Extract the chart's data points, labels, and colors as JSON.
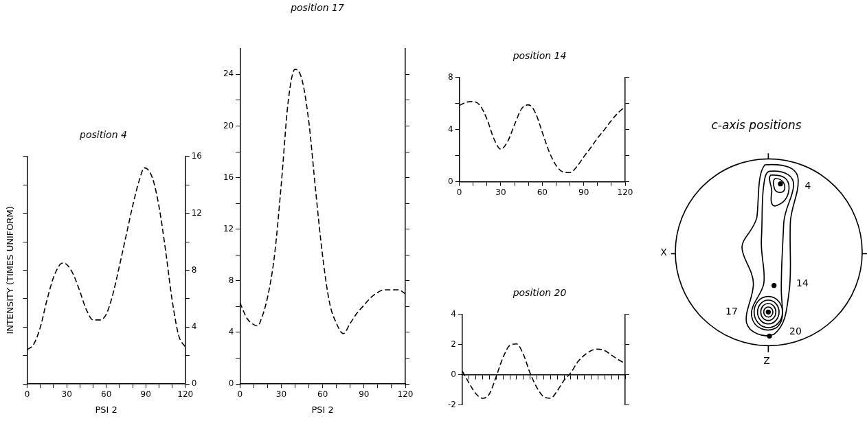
{
  "chart_data": [
    {
      "type": "line",
      "title": "position 4",
      "xlabel": "PSI 2",
      "ylabel": "INTENSITY (TIMES UNIFORM)",
      "line_style": "dashed",
      "grid": false,
      "legend": false,
      "x": [
        0,
        5,
        10,
        15,
        20,
        25,
        27,
        30,
        35,
        40,
        45,
        50,
        55,
        60,
        65,
        70,
        75,
        80,
        85,
        89,
        95,
        100,
        105,
        110,
        115,
        120
      ],
      "series": [
        {
          "color": "#000000",
          "axis": "y2",
          "values": [
            2.4,
            2.8,
            4.0,
            5.9,
            7.5,
            8.4,
            8.5,
            8.4,
            7.7,
            6.5,
            5.2,
            4.5,
            4.5,
            4.9,
            6.3,
            8.3,
            10.4,
            12.5,
            14.3,
            15.2,
            14.5,
            12.5,
            9.4,
            5.9,
            3.4,
            2.6
          ]
        }
      ],
      "xlim": [
        0,
        120
      ],
      "xticks": [
        0,
        {
          "value": 10,
          "label": null
        },
        {
          "value": 20,
          "label": null
        },
        30,
        {
          "value": 40,
          "label": null
        },
        {
          "value": 50,
          "label": null
        },
        60,
        {
          "value": 70,
          "label": null
        },
        {
          "value": 80,
          "label": null
        },
        90,
        {
          "value": 100,
          "label": null
        },
        {
          "value": 110,
          "label": null
        },
        120
      ],
      "y2lim": [
        0,
        16
      ],
      "y2ticks": [
        0,
        {
          "value": 2,
          "label": null
        },
        4,
        {
          "value": 6,
          "label": null
        },
        8,
        {
          "value": 10,
          "label": null
        },
        12,
        {
          "value": 14,
          "label": null
        },
        16
      ]
    },
    {
      "type": "line",
      "title": "position 17",
      "xlabel": "PSI 2",
      "line_style": "dashed",
      "grid": false,
      "legend": false,
      "x": [
        0,
        5,
        10,
        13,
        15,
        20,
        25,
        30,
        35,
        40,
        45,
        50,
        55,
        60,
        65,
        70,
        75,
        80,
        85,
        90,
        95,
        100,
        105,
        110,
        115,
        120
      ],
      "series": [
        {
          "color": "#000000",
          "values": [
            6.3,
            5.1,
            4.6,
            4.5,
            4.9,
            6.7,
            9.9,
            15.5,
            21.9,
            24.4,
            23.6,
            20.3,
            14.9,
            9.9,
            6.3,
            4.7,
            3.9,
            4.7,
            5.5,
            6.1,
            6.7,
            7.1,
            7.3,
            7.3,
            7.3,
            7.0
          ]
        }
      ],
      "xlim": [
        0,
        120
      ],
      "xticks": [
        0,
        {
          "value": 10,
          "label": null
        },
        {
          "value": 20,
          "label": null
        },
        30,
        {
          "value": 40,
          "label": null
        },
        {
          "value": 50,
          "label": null
        },
        60,
        {
          "value": 70,
          "label": null
        },
        {
          "value": 80,
          "label": null
        },
        90,
        {
          "value": 100,
          "label": null
        },
        {
          "value": 110,
          "label": null
        },
        120
      ],
      "ylim": [
        0,
        26
      ],
      "yticks": [
        0,
        {
          "value": 2,
          "label": null
        },
        4,
        {
          "value": 6,
          "label": null
        },
        8,
        {
          "value": 10,
          "label": null
        },
        12,
        {
          "value": 14,
          "label": null
        },
        16,
        {
          "value": 18,
          "label": null
        },
        20,
        {
          "value": 22,
          "label": null
        },
        24
      ]
    },
    {
      "type": "line",
      "title": "position 14",
      "line_style": "dashed",
      "grid": false,
      "legend": false,
      "x": [
        0,
        5,
        10,
        15,
        20,
        25,
        30,
        35,
        40,
        45,
        50,
        55,
        60,
        65,
        70,
        75,
        80,
        85,
        90,
        95,
        100,
        105,
        110,
        115,
        120
      ],
      "series": [
        {
          "color": "#000000",
          "values": [
            5.85,
            6.1,
            6.15,
            5.85,
            4.8,
            3.3,
            2.5,
            3.1,
            4.4,
            5.6,
            5.9,
            5.3,
            3.8,
            2.3,
            1.25,
            0.75,
            0.7,
            1.15,
            1.9,
            2.6,
            3.35,
            4.0,
            4.7,
            5.3,
            5.75
          ]
        }
      ],
      "xlim": [
        0,
        120
      ],
      "xticks": [
        0,
        {
          "value": 10,
          "label": null
        },
        {
          "value": 20,
          "label": null
        },
        30,
        {
          "value": 40,
          "label": null
        },
        {
          "value": 50,
          "label": null
        },
        60,
        {
          "value": 70,
          "label": null
        },
        {
          "value": 80,
          "label": null
        },
        90,
        {
          "value": 100,
          "label": null
        },
        {
          "value": 110,
          "label": null
        },
        120
      ],
      "ylim": [
        0,
        8
      ],
      "yticks": [
        0,
        {
          "value": 2,
          "label": null
        },
        4,
        {
          "value": 6,
          "label": null
        },
        8
      ]
    },
    {
      "type": "line",
      "title": "position 20",
      "line_style": "dashed",
      "legend": false,
      "categories": [
        null,
        null,
        null,
        null,
        null,
        null,
        null,
        null,
        null,
        null,
        null,
        null,
        null,
        null,
        null,
        null,
        null,
        null,
        null,
        null,
        null,
        null,
        null,
        null,
        null
      ],
      "series": [
        {
          "color": "#000000",
          "values": [
            0.25,
            -0.55,
            -1.25,
            -1.55,
            -1.25,
            -0.1,
            1.15,
            1.95,
            2.05,
            1.35,
            0.1,
            -0.85,
            -1.45,
            -1.55,
            -1.05,
            -0.35,
            0.15,
            0.85,
            1.3,
            1.6,
            1.7,
            1.6,
            1.3,
            1.0,
            0.75
          ]
        }
      ],
      "ylim": [
        -2,
        4
      ],
      "yticks": [
        -2,
        0,
        2,
        4
      ]
    },
    {
      "type": "other",
      "title": "c-axis positions",
      "annotations": [
        "X",
        "Z",
        "4",
        "14",
        "17",
        "20"
      ]
    }
  ]
}
